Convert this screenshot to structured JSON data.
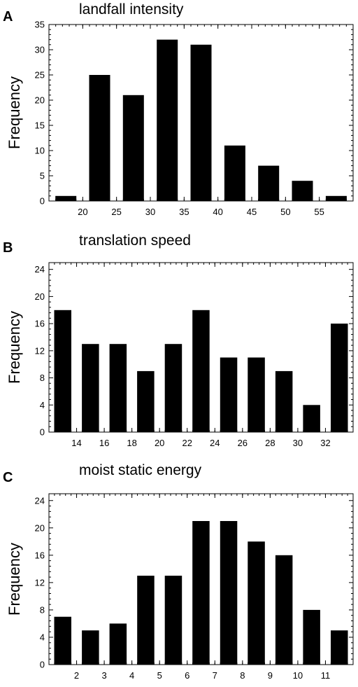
{
  "chart_data": [
    {
      "type": "bar",
      "panel_label": "A",
      "title": "landfall intensity",
      "ylabel": "Frequency",
      "xlabel": "",
      "ylim": [
        0,
        35
      ],
      "yticks": [
        0,
        5,
        10,
        15,
        20,
        25,
        30,
        35
      ],
      "xlim": [
        15,
        60
      ],
      "xticks": [
        20,
        25,
        30,
        35,
        40,
        45,
        50,
        55
      ],
      "bin_centers": [
        17.5,
        22.5,
        27.5,
        32.5,
        37.5,
        42.5,
        47.5,
        52.5,
        57.5
      ],
      "values": [
        1,
        25,
        21,
        32,
        31,
        11,
        7,
        4,
        1
      ],
      "bar_color": "#000000"
    },
    {
      "type": "bar",
      "panel_label": "B",
      "title": "translation speed",
      "ylabel": "Frequency",
      "xlabel": "",
      "ylim": [
        0,
        25
      ],
      "yticks": [
        0,
        4,
        8,
        12,
        16,
        20,
        24
      ],
      "xlim": [
        12,
        34
      ],
      "xticks": [
        14,
        16,
        18,
        20,
        22,
        24,
        26,
        28,
        30,
        32
      ],
      "bin_centers": [
        13,
        15,
        17,
        19,
        21,
        23,
        25,
        27,
        29,
        31,
        33
      ],
      "values": [
        18,
        13,
        13,
        9,
        13,
        18,
        11,
        11,
        9,
        4,
        16
      ],
      "bar_color": "#000000"
    },
    {
      "type": "bar",
      "panel_label": "C",
      "title": "moist static energy",
      "ylabel": "Frequency",
      "xlabel": "",
      "ylim": [
        0,
        25
      ],
      "yticks": [
        0,
        4,
        8,
        12,
        16,
        20,
        24
      ],
      "xlim": [
        1,
        12
      ],
      "xticks": [
        2,
        3,
        4,
        5,
        6,
        7,
        8,
        9,
        10,
        11
      ],
      "bin_centers": [
        1.5,
        2.5,
        3.5,
        4.5,
        5.5,
        6.5,
        7.5,
        8.5,
        9.5,
        10.5,
        11.5
      ],
      "values": [
        7,
        5,
        6,
        13,
        13,
        21,
        21,
        18,
        16,
        8,
        5
      ],
      "bar_color": "#000000"
    }
  ]
}
